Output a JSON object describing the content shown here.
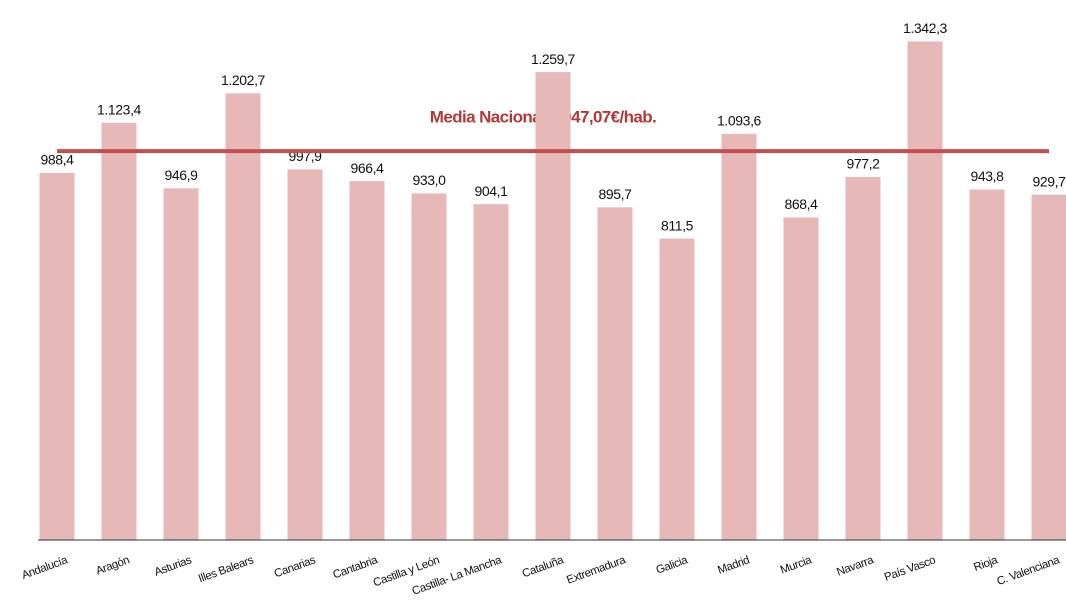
{
  "chart_data": {
    "type": "bar",
    "categories": [
      "Andalucía",
      "Aragón",
      "Asturias",
      "Illes Balears",
      "Canarias",
      "Cantabria",
      "Castilla y León",
      "Castilla- La Mancha",
      "Cataluña",
      "Extremadura",
      "Galicia",
      "Madrid",
      "Murcia",
      "Navarra",
      "País Vasco",
      "Rioja",
      "C. Valenciana"
    ],
    "values": [
      988.4,
      1123.4,
      946.9,
      1202.7,
      997.9,
      966.4,
      933.0,
      904.1,
      1259.7,
      895.7,
      811.5,
      1093.6,
      868.4,
      977.2,
      1342.3,
      943.8,
      929.7
    ],
    "value_labels": [
      "988,4",
      "1.123,4",
      "946,9",
      "1.202,7",
      "997,9",
      "966,4",
      "933,0",
      "904,1",
      "1.259,7",
      "895,7",
      "811,5",
      "1.093,6",
      "868,4",
      "977,2",
      "1.342,3",
      "943,8",
      "929,7"
    ],
    "color": "#e6b8b7",
    "ylim": [
      0,
      1400
    ],
    "reference_line": {
      "value": 1047.07,
      "label": "Media Nacional 1.047,07€/hab.",
      "color": "#c0504d"
    }
  }
}
